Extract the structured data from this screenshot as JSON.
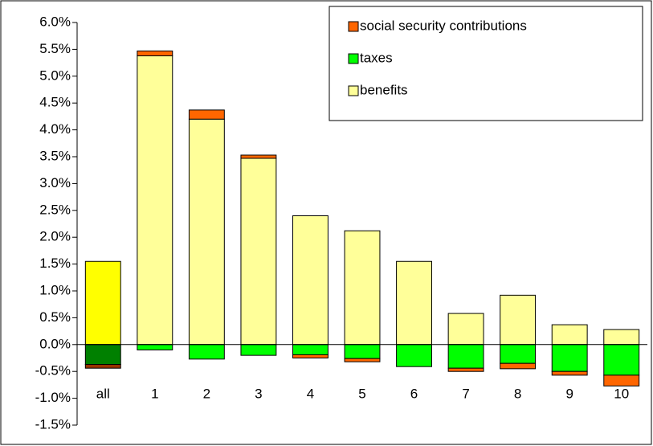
{
  "chart_data": {
    "type": "stacked_bar",
    "categories": [
      "all",
      "1",
      "2",
      "3",
      "4",
      "5",
      "6",
      "7",
      "8",
      "9",
      "10"
    ],
    "series": [
      {
        "name": "benefits",
        "color": "#ffff99",
        "colors": [
          "#ffff00",
          "#ffff99",
          "#ffff99",
          "#ffff99",
          "#ffff99",
          "#ffff99",
          "#ffff99",
          "#ffff99",
          "#ffff99",
          "#ffff99",
          "#ffff99"
        ],
        "values": [
          1.55,
          5.38,
          4.2,
          3.47,
          2.4,
          2.12,
          1.55,
          0.58,
          0.92,
          0.37,
          0.28
        ]
      },
      {
        "name": "taxes",
        "color": "#00ff00",
        "colors": [
          "#008000",
          "#00ff00",
          "#00ff00",
          "#00ff00",
          "#00ff00",
          "#00ff00",
          "#00ff00",
          "#00ff00",
          "#00ff00",
          "#00ff00",
          "#00ff00"
        ],
        "values": [
          -0.37,
          -0.1,
          -0.27,
          -0.2,
          -0.19,
          -0.26,
          -0.41,
          -0.44,
          -0.35,
          -0.5,
          -0.57
        ]
      },
      {
        "name": "social security contributions",
        "color": "#ff6600",
        "colors": [
          "#993300",
          "#ff6600",
          "#ff6600",
          "#ff6600",
          "#ff6600",
          "#ff6600",
          "#ff6600",
          "#ff6600",
          "#ff6600",
          "#ff6600",
          "#ff6600"
        ],
        "values": [
          -0.07,
          0.09,
          0.17,
          0.06,
          -0.06,
          -0.06,
          0,
          -0.06,
          -0.1,
          -0.07,
          -0.2
        ]
      }
    ],
    "ylim": [
      -1.5,
      6.0
    ],
    "yticks": [
      {
        "value": -1.5,
        "label": "-1.5%"
      },
      {
        "value": -1.0,
        "label": "-1.0%"
      },
      {
        "value": -0.5,
        "label": "-0.5%"
      },
      {
        "value": 0,
        "label": "0.0%"
      },
      {
        "value": 0.5,
        "label": "0.5%"
      },
      {
        "value": 1.0,
        "label": "1.0%"
      },
      {
        "value": 1.5,
        "label": "1.5%"
      },
      {
        "value": 2.0,
        "label": "2.0%"
      },
      {
        "value": 2.5,
        "label": "2.5%"
      },
      {
        "value": 3.0,
        "label": "3.0%"
      },
      {
        "value": 3.5,
        "label": "3.5%"
      },
      {
        "value": 4.0,
        "label": "4.0%"
      },
      {
        "value": 4.5,
        "label": "4.5%"
      },
      {
        "value": 5.0,
        "label": "5.0%"
      },
      {
        "value": 5.5,
        "label": "5.5%"
      },
      {
        "value": 6.0,
        "label": "6.0%"
      }
    ],
    "grid": false,
    "legend": "top-right"
  }
}
